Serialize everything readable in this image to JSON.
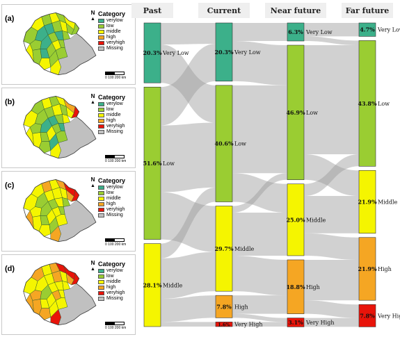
{
  "maps": {
    "legend_title": "Category",
    "north_label": "N",
    "scale_text": "0 100 200 km",
    "legend_items": [
      {
        "label": "verylow",
        "color": "#3cb08a"
      },
      {
        "label": "low",
        "color": "#9acd32"
      },
      {
        "label": "middle",
        "color": "#f5f500"
      },
      {
        "label": "high",
        "color": "#f5a623"
      },
      {
        "label": "veryhigh",
        "color": "#e8140a"
      },
      {
        "label": "Missing",
        "color": "#c0c0c0"
      }
    ],
    "panels": [
      {
        "label": "(a)",
        "highlights": "verylow-low"
      },
      {
        "label": "(b)",
        "highlights": "some-high"
      },
      {
        "label": "(c)",
        "highlights": "more-high"
      },
      {
        "label": "(d)",
        "highlights": "most-high"
      }
    ]
  },
  "sankey": {
    "columns": [
      {
        "title": "Past",
        "nodes": [
          {
            "category": "Very Low",
            "pct": 20.3,
            "label": "20.3%",
            "color": "#3cb08a"
          },
          {
            "category": "Low",
            "pct": 51.6,
            "label": "51.6%",
            "color": "#9acd32"
          },
          {
            "category": "Middle",
            "pct": 28.1,
            "label": "28.1%",
            "color": "#f5f500"
          }
        ]
      },
      {
        "title": "Current",
        "nodes": [
          {
            "category": "Very Low",
            "pct": 20.3,
            "label": "20.3%",
            "color": "#3cb08a"
          },
          {
            "category": "Low",
            "pct": 40.6,
            "label": "40.6%",
            "color": "#9acd32"
          },
          {
            "category": "Middle",
            "pct": 29.7,
            "label": "29.7%",
            "color": "#f5f500"
          },
          {
            "category": "High",
            "pct": 7.8,
            "label": "7.8%",
            "color": "#f5a623"
          },
          {
            "category": "Very  High",
            "pct": 1.6,
            "label": "1.6%",
            "color": "#e8140a"
          }
        ]
      },
      {
        "title": "Near future",
        "nodes": [
          {
            "category": "Very Low",
            "pct": 6.3,
            "label": "6.3%",
            "color": "#3cb08a"
          },
          {
            "category": "Low",
            "pct": 46.9,
            "label": "46.9%",
            "color": "#9acd32"
          },
          {
            "category": "Middle",
            "pct": 25.0,
            "label": "25.0%",
            "color": "#f5f500"
          },
          {
            "category": "High",
            "pct": 18.8,
            "label": "18.8%",
            "color": "#f5a623"
          },
          {
            "category": "Very  High",
            "pct": 3.1,
            "label": "3.1%",
            "color": "#e8140a"
          }
        ]
      },
      {
        "title": "Far future",
        "nodes": [
          {
            "category": "Very Low",
            "pct": 4.7,
            "label": "4.7%",
            "color": "#3cb08a"
          },
          {
            "category": "Low",
            "pct": 43.8,
            "label": "43.8%",
            "color": "#9acd32"
          },
          {
            "category": "Middle",
            "pct": 21.9,
            "label": "21.9%",
            "color": "#f5f500"
          },
          {
            "category": "High",
            "pct": 21.9,
            "label": "21.9%",
            "color": "#f5a623"
          },
          {
            "category": "Very  High",
            "pct": 7.8,
            "label": "7.8%",
            "color": "#e8140a"
          }
        ]
      }
    ],
    "flows": [
      {
        "from": [
          0,
          0
        ],
        "to": [
          1,
          0
        ],
        "value": 7.3
      },
      {
        "from": [
          0,
          0
        ],
        "to": [
          1,
          1
        ],
        "value": 13.0
      },
      {
        "from": [
          0,
          1
        ],
        "to": [
          1,
          0
        ],
        "value": 13.0
      },
      {
        "from": [
          0,
          1
        ],
        "to": [
          1,
          1
        ],
        "value": 22.6
      },
      {
        "from": [
          0,
          1
        ],
        "to": [
          1,
          2
        ],
        "value": 16.0
      },
      {
        "from": [
          0,
          2
        ],
        "to": [
          1,
          1
        ],
        "value": 5.0
      },
      {
        "from": [
          0,
          2
        ],
        "to": [
          1,
          2
        ],
        "value": 13.7
      },
      {
        "from": [
          0,
          2
        ],
        "to": [
          1,
          3
        ],
        "value": 7.8
      },
      {
        "from": [
          0,
          2
        ],
        "to": [
          1,
          4
        ],
        "value": 1.6
      },
      {
        "from": [
          1,
          0
        ],
        "to": [
          2,
          0
        ],
        "value": 6.3
      },
      {
        "from": [
          1,
          0
        ],
        "to": [
          2,
          1
        ],
        "value": 14.0
      },
      {
        "from": [
          1,
          1
        ],
        "to": [
          2,
          1
        ],
        "value": 30.6
      },
      {
        "from": [
          1,
          1
        ],
        "to": [
          2,
          2
        ],
        "value": 10.0
      },
      {
        "from": [
          1,
          2
        ],
        "to": [
          2,
          1
        ],
        "value": 2.3
      },
      {
        "from": [
          1,
          2
        ],
        "to": [
          2,
          2
        ],
        "value": 15.0
      },
      {
        "from": [
          1,
          2
        ],
        "to": [
          2,
          3
        ],
        "value": 12.4
      },
      {
        "from": [
          1,
          3
        ],
        "to": [
          2,
          3
        ],
        "value": 6.4
      },
      {
        "from": [
          1,
          3
        ],
        "to": [
          2,
          4
        ],
        "value": 1.4
      },
      {
        "from": [
          1,
          4
        ],
        "to": [
          2,
          4
        ],
        "value": 1.6
      },
      {
        "from": [
          2,
          0
        ],
        "to": [
          3,
          0
        ],
        "value": 4.7
      },
      {
        "from": [
          2,
          0
        ],
        "to": [
          3,
          1
        ],
        "value": 1.6
      },
      {
        "from": [
          2,
          1
        ],
        "to": [
          3,
          1
        ],
        "value": 38.0
      },
      {
        "from": [
          2,
          1
        ],
        "to": [
          3,
          2
        ],
        "value": 8.9
      },
      {
        "from": [
          2,
          2
        ],
        "to": [
          3,
          1
        ],
        "value": 4.2
      },
      {
        "from": [
          2,
          2
        ],
        "to": [
          3,
          2
        ],
        "value": 13.0
      },
      {
        "from": [
          2,
          2
        ],
        "to": [
          3,
          3
        ],
        "value": 7.8
      },
      {
        "from": [
          2,
          3
        ],
        "to": [
          3,
          3
        ],
        "value": 14.1
      },
      {
        "from": [
          2,
          3
        ],
        "to": [
          3,
          4
        ],
        "value": 4.7
      },
      {
        "from": [
          2,
          4
        ],
        "to": [
          3,
          4
        ],
        "value": 3.1
      }
    ]
  }
}
